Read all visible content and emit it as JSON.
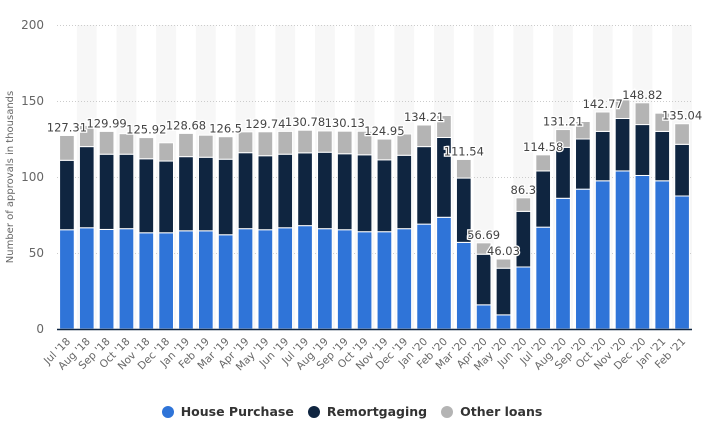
{
  "chart_data": {
    "type": "bar",
    "stacked": true,
    "title": "",
    "xlabel": "",
    "ylabel": "Number of approvals in thousands",
    "ylim": [
      0,
      200
    ],
    "yticks": [
      0,
      50,
      100,
      150,
      200
    ],
    "grid": true,
    "legend_position": "bottom-center",
    "categories": [
      "Jul '18",
      "Aug '18",
      "Sep '18",
      "Oct '18",
      "Nov '18",
      "Dec '18",
      "Jan '19",
      "Feb '19",
      "Mar '19",
      "Apr '19",
      "May '19",
      "Jun '19",
      "Jul '19",
      "Aug '19",
      "Sep '19",
      "Oct '19",
      "Nov '19",
      "Dec '19",
      "Jan '20",
      "Feb '20",
      "Mar '20",
      "Apr '20",
      "May '20",
      "Jun '20",
      "Jul '20",
      "Aug '20",
      "Sep '20",
      "Oct '20",
      "Nov '20",
      "Dec '20",
      "Jan '21",
      "Feb '21"
    ],
    "series": [
      {
        "name": "House Purchase",
        "color": "#2f74d8",
        "values": [
          65.3,
          66.6,
          65.5,
          66.0,
          63.3,
          63.3,
          64.6,
          64.6,
          62.0,
          66.0,
          65.3,
          66.6,
          68.0,
          66.0,
          65.3,
          64.0,
          64.0,
          66.0,
          69.0,
          73.5,
          57.0,
          15.9,
          9.3,
          40.8,
          67.0,
          86.0,
          92.0,
          97.5,
          104.0,
          101.0,
          97.5,
          87.5
        ]
      },
      {
        "name": "Remortgaging",
        "color": "#0f2540",
        "values": [
          45.7,
          53.4,
          49.5,
          49.0,
          48.7,
          47.2,
          48.8,
          48.4,
          49.7,
          50.0,
          48.7,
          48.4,
          47.9,
          50.3,
          50.0,
          50.6,
          47.3,
          48.3,
          51.0,
          52.5,
          42.3,
          33.3,
          30.7,
          36.6,
          37.0,
          33.5,
          33.0,
          32.5,
          34.5,
          33.5,
          32.5,
          34.0
        ]
      },
      {
        "name": "Other loans",
        "color": "#b4b4b4",
        "values": [
          16.31,
          14.0,
          14.99,
          13.5,
          13.92,
          12.0,
          15.28,
          14.5,
          14.8,
          13.7,
          15.74,
          15.0,
          14.88,
          14.0,
          14.83,
          15.5,
          13.65,
          14.0,
          14.21,
          14.5,
          12.24,
          7.49,
          6.03,
          8.9,
          10.58,
          11.71,
          11.5,
          12.77,
          12.3,
          14.32,
          12.0,
          13.54
        ]
      }
    ],
    "data_labels": [
      {
        "category": "Jul '18",
        "text": "127.31"
      },
      {
        "category": "Sep '18",
        "text": "129.99"
      },
      {
        "category": "Nov '18",
        "text": "125.92"
      },
      {
        "category": "Jan '19",
        "text": "128.68"
      },
      {
        "category": "Mar '19",
        "text": "126.5"
      },
      {
        "category": "May '19",
        "text": "129.74"
      },
      {
        "category": "Jul '19",
        "text": "130.78"
      },
      {
        "category": "Sep '19",
        "text": "130.13"
      },
      {
        "category": "Nov '19",
        "text": "124.95"
      },
      {
        "category": "Jan '20",
        "text": "134.21"
      },
      {
        "category": "Mar '20",
        "text": "111.54"
      },
      {
        "category": "Apr '20",
        "text": "56.69"
      },
      {
        "category": "May '20",
        "text": "46.03"
      },
      {
        "category": "Jun '20",
        "text": "86.3"
      },
      {
        "category": "Jul '20",
        "text": "114.58"
      },
      {
        "category": "Aug '20",
        "text": "131.21"
      },
      {
        "category": "Oct '20",
        "text": "142.77"
      },
      {
        "category": "Dec '20",
        "text": "148.82"
      },
      {
        "category": "Feb '21",
        "text": "135.04"
      }
    ]
  },
  "legend": {
    "items": [
      {
        "label": "House Purchase",
        "color": "#2f74d8"
      },
      {
        "label": "Remortgaging",
        "color": "#0f2540"
      },
      {
        "label": "Other loans",
        "color": "#b4b4b4"
      }
    ]
  }
}
